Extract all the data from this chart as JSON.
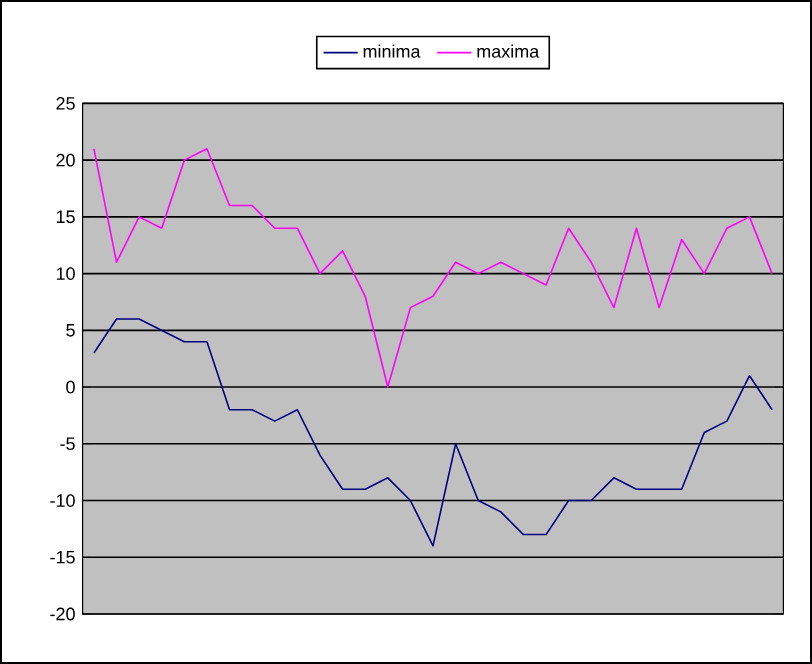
{
  "chart_data": {
    "type": "line",
    "categories": [
      null,
      null,
      null,
      null,
      null,
      null,
      null,
      null,
      null,
      null,
      null,
      null,
      null,
      null,
      null,
      null,
      null,
      null,
      null,
      null,
      null,
      null,
      null,
      null,
      null,
      null,
      null,
      null,
      null,
      null,
      null
    ],
    "series": [
      {
        "name": "minima",
        "color": "#000080",
        "values": [
          3,
          6,
          6,
          5,
          4,
          4,
          -2,
          -2,
          -3,
          -2,
          -6,
          -9,
          -9,
          -8,
          -10,
          -14,
          -5,
          -10,
          -11,
          -13,
          -13,
          -10,
          -10,
          -8,
          -9,
          -9,
          -9,
          -4,
          -3,
          1,
          -2
        ]
      },
      {
        "name": "maxima",
        "color": "#ff00ff",
        "values": [
          21,
          11,
          15,
          14,
          20,
          21,
          16,
          16,
          14,
          14,
          10,
          12,
          8,
          0,
          7,
          8,
          11,
          10,
          11,
          10,
          9,
          14,
          11,
          7,
          14,
          7,
          13,
          10,
          14,
          15,
          10
        ]
      }
    ],
    "ylim": [
      -20,
      25
    ],
    "yticks": [
      -20,
      -15,
      -10,
      -5,
      0,
      5,
      10,
      15,
      20,
      25
    ],
    "grid": "y",
    "legend": "top",
    "marker": "none",
    "line_style": "solid"
  }
}
